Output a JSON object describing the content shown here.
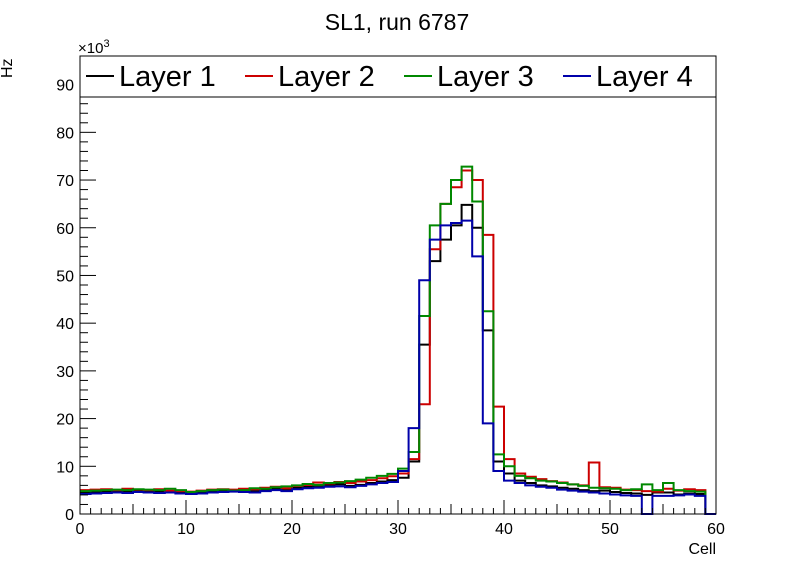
{
  "chart_data": {
    "type": "line",
    "title": "SL1, run 6787",
    "xlabel": "Cell",
    "ylabel": "Hz",
    "y_multiplier_label": "×10",
    "y_multiplier_exp": "3",
    "xlim": [
      0,
      60
    ],
    "ylim": [
      0,
      96
    ],
    "xticks": [
      0,
      10,
      20,
      30,
      40,
      50,
      60
    ],
    "yticks": [
      0,
      10,
      20,
      30,
      40,
      50,
      60,
      70,
      80,
      90
    ],
    "grid": false,
    "legend": "top",
    "bin_edges_start": 0,
    "bin_width": 1,
    "series": [
      {
        "name": "Layer 1",
        "color": "#000000",
        "values": [
          4.5,
          4.6,
          4.7,
          4.8,
          4.7,
          4.8,
          4.9,
          4.7,
          4.6,
          4.6,
          4.4,
          4.5,
          4.7,
          4.8,
          4.9,
          4.9,
          4.8,
          5.1,
          5.3,
          5.0,
          5.5,
          5.7,
          5.9,
          6.1,
          6.2,
          5.9,
          6.1,
          6.5,
          6.8,
          7.1,
          7.6,
          11.0,
          35.5,
          53.0,
          57.5,
          60.5,
          64.8,
          60.0,
          38.5,
          11.0,
          8.5,
          7.0,
          6.5,
          6.0,
          5.8,
          5.5,
          5.3,
          5.0,
          4.8,
          4.9,
          4.6,
          4.4,
          4.3,
          4.0,
          4.5,
          4.5,
          4.1,
          4.3,
          4.2,
          0
        ]
      },
      {
        "name": "Layer 2",
        "color": "#cc0000",
        "values": [
          5.0,
          5.1,
          5.2,
          5.0,
          5.3,
          5.1,
          5.0,
          5.2,
          4.9,
          4.8,
          4.7,
          4.9,
          5.1,
          5.2,
          5.1,
          5.3,
          5.2,
          5.5,
          5.7,
          5.4,
          5.9,
          6.1,
          6.6,
          6.4,
          6.7,
          6.5,
          6.8,
          7.1,
          7.5,
          7.9,
          8.5,
          11.5,
          23.0,
          55.5,
          65.0,
          68.5,
          72.0,
          70.0,
          58.5,
          22.5,
          11.5,
          8.5,
          7.8,
          7.3,
          6.9,
          6.6,
          6.2,
          6.0,
          10.8,
          5.6,
          5.5,
          5.1,
          5.0,
          4.8,
          4.7,
          5.3,
          4.9,
          5.2,
          5.0,
          0
        ]
      },
      {
        "name": "Layer 3",
        "color": "#008800",
        "values": [
          4.8,
          4.9,
          5.0,
          5.1,
          5.0,
          5.2,
          5.1,
          5.0,
          5.3,
          5.0,
          4.6,
          4.8,
          5.0,
          5.1,
          4.9,
          5.0,
          5.4,
          5.3,
          5.6,
          5.8,
          6.0,
          6.3,
          6.1,
          6.5,
          6.6,
          6.9,
          7.2,
          7.6,
          8.0,
          8.4,
          9.5,
          13.0,
          41.5,
          60.5,
          65.0,
          70.0,
          72.8,
          65.5,
          42.5,
          12.5,
          10.0,
          8.0,
          7.5,
          7.0,
          6.8,
          6.5,
          6.2,
          5.9,
          5.5,
          5.4,
          5.3,
          5.0,
          5.2,
          6.2,
          5.0,
          6.5,
          5.0,
          4.8,
          4.7,
          0
        ]
      },
      {
        "name": "Layer 4",
        "color": "#0000aa",
        "values": [
          4.2,
          4.3,
          4.4,
          4.5,
          4.4,
          4.6,
          4.5,
          4.4,
          4.5,
          4.3,
          4.2,
          4.3,
          4.5,
          4.6,
          4.7,
          4.6,
          4.5,
          4.8,
          5.0,
          4.8,
          5.2,
          5.4,
          5.5,
          5.7,
          5.8,
          5.6,
          5.9,
          6.2,
          6.5,
          6.7,
          9.0,
          18.0,
          49.0,
          57.5,
          60.5,
          61.0,
          61.5,
          54.0,
          19.0,
          9.0,
          7.0,
          6.5,
          6.0,
          5.7,
          5.5,
          5.1,
          4.9,
          4.7,
          4.5,
          4.3,
          4.1,
          3.9,
          3.8,
          0,
          3.8,
          3.8,
          3.9,
          4.1,
          3.8,
          0
        ]
      }
    ]
  }
}
